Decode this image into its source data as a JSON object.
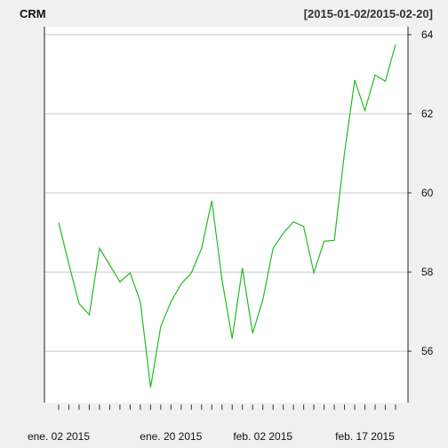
{
  "chart_data": {
    "type": "line",
    "title": "CRM",
    "subtitle": "[2015-01-02/2015-02-20]",
    "xlabel": "",
    "ylabel": "",
    "x_tick_labels": [
      "ene. 02 2015",
      "ene. 20 2015",
      "feb. 02 2015",
      "feb. 17 2015"
    ],
    "y_ticks": [
      56,
      58,
      60,
      62,
      64
    ],
    "ylim": [
      54.7,
      64.2
    ],
    "grid": "horizontal",
    "y_axis_side": "right",
    "series": [
      {
        "color": "#22bb22",
        "x": [
          "2015-01-02",
          "2015-01-05",
          "2015-01-06",
          "2015-01-07",
          "2015-01-08",
          "2015-01-09",
          "2015-01-12",
          "2015-01-13",
          "2015-01-14",
          "2015-01-15",
          "2015-01-16",
          "2015-01-20",
          "2015-01-21",
          "2015-01-22",
          "2015-01-23",
          "2015-01-26",
          "2015-01-27",
          "2015-01-28",
          "2015-01-29",
          "2015-01-30",
          "2015-02-02",
          "2015-02-03",
          "2015-02-04",
          "2015-02-05",
          "2015-02-06",
          "2015-02-09",
          "2015-02-10",
          "2015-02-11",
          "2015-02-12",
          "2015-02-13",
          "2015-02-17",
          "2015-02-18",
          "2015-02-19",
          "2015-02-20"
        ],
        "values": [
          59.25,
          58.2,
          57.2,
          56.92,
          58.6,
          58.18,
          57.75,
          57.98,
          57.25,
          55.08,
          56.62,
          57.25,
          57.7,
          57.98,
          58.6,
          59.8,
          57.8,
          56.32,
          58.1,
          56.45,
          57.3,
          58.6,
          58.98,
          59.27,
          59.15,
          57.98,
          58.78,
          58.8,
          61.02,
          62.85,
          62.08,
          62.98,
          62.82,
          63.75
        ]
      }
    ]
  }
}
